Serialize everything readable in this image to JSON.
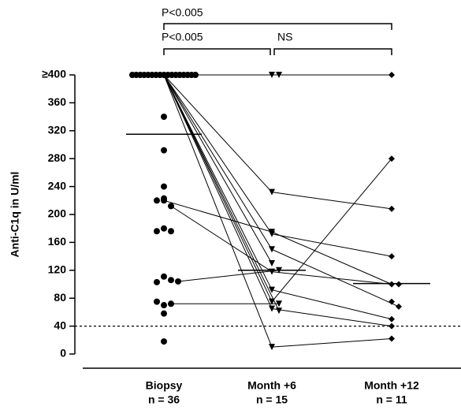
{
  "chart_data": {
    "type": "dot",
    "y_label": "Anti-C1q in U/ml",
    "categories": [
      "Biopsy",
      "Month +6",
      "Month +12"
    ],
    "n_labels": [
      "n = 36",
      "n = 15",
      "n = 11"
    ],
    "ylim": [
      0,
      400
    ],
    "yticks": [
      0,
      40,
      80,
      120,
      160,
      200,
      240,
      280,
      320,
      360,
      {
        "value": 400,
        "label": "≥400"
      }
    ],
    "groups": [
      {
        "marker": "circle",
        "median": 315,
        "values": [
          400,
          400,
          400,
          400,
          400,
          400,
          400,
          400,
          400,
          400,
          400,
          400,
          400,
          400,
          400,
          400,
          400,
          340,
          292,
          240,
          223,
          220,
          212,
          220,
          180,
          176,
          176,
          111,
          106,
          103,
          104,
          70,
          72,
          75,
          58,
          18
        ]
      },
      {
        "marker": "triangle",
        "median": 120,
        "values": [
          400,
          400,
          232,
          175,
          172,
          150,
          130,
          118,
          120,
          92,
          75,
          72,
          65,
          62,
          10
        ]
      },
      {
        "marker": "diamond",
        "median": 101,
        "values": [
          400,
          280,
          208,
          140,
          100,
          100,
          75,
          68,
          50,
          40,
          22
        ]
      }
    ],
    "patients": [
      [
        400,
        400,
        400
      ],
      [
        400,
        400,
        null
      ],
      [
        400,
        232,
        208
      ],
      [
        220,
        175,
        100
      ],
      [
        400,
        172,
        140
      ],
      [
        400,
        150,
        68
      ],
      [
        400,
        130,
        null
      ],
      [
        212,
        118,
        100
      ],
      [
        104,
        120,
        null
      ],
      [
        400,
        92,
        50
      ],
      [
        400,
        75,
        280
      ],
      [
        72,
        72,
        null
      ],
      [
        400,
        65,
        40
      ],
      [
        400,
        62,
        null
      ],
      [
        400,
        10,
        22
      ]
    ],
    "threshold": 40,
    "comparisons": [
      {
        "label": "P<0.005",
        "from": 0,
        "to": 2
      },
      {
        "label": "P<0.005",
        "from": 0,
        "to": 1
      },
      {
        "label": "NS",
        "from": 1,
        "to": 2
      }
    ]
  }
}
